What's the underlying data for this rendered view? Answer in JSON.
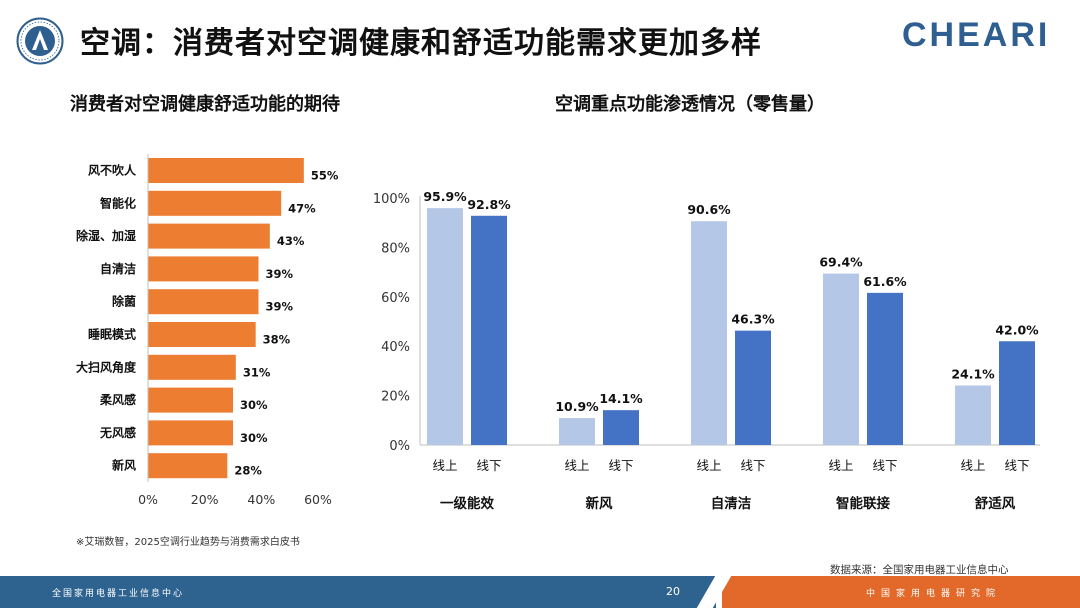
{
  "header": {
    "title": "空调：消费者对空调健康和舒适功能需求更加多样",
    "brand": "CHEARI"
  },
  "left_chart_title": "消费者对空调健康舒适功能的期待",
  "right_chart_title": "空调重点功能渗透情况（零售量）",
  "note": "※艾瑞数智，2025空调行业趋势与消费需求白皮书",
  "source": "数据来源：全国家用电器工业信息中心",
  "footer": {
    "left_text": "全国家用电器工业信息中心",
    "page_number": "20",
    "right_text": "中国家用电器研究院"
  },
  "colors": {
    "orange": "#ed7d31",
    "light_blue": "#b4c7e7",
    "dark_blue": "#4472c4",
    "brand_blue": "#2f5f91",
    "footer_blue": "#2e6390",
    "footer_orange": "#e2692a"
  },
  "chart_data": [
    {
      "type": "bar",
      "orientation": "horizontal",
      "title": "消费者对空调健康舒适功能的期待",
      "categories": [
        "风不吹人",
        "智能化",
        "除湿、加湿",
        "自清洁",
        "除菌",
        "睡眠模式",
        "大扫风角度",
        "柔风感",
        "无风感",
        "新风"
      ],
      "values": [
        55,
        47,
        43,
        39,
        39,
        38,
        31,
        30,
        30,
        28
      ],
      "value_labels": [
        "55%",
        "47%",
        "43%",
        "39%",
        "39%",
        "38%",
        "31%",
        "30%",
        "30%",
        "28%"
      ],
      "xlim": [
        0,
        60
      ],
      "x_ticks": [
        "0%",
        "20%",
        "40%",
        "60%"
      ],
      "grid": false
    },
    {
      "type": "bar",
      "title": "空调重点功能渗透情况（零售量）",
      "categories": [
        "一级能效",
        "新风",
        "自清洁",
        "智能联接",
        "舒适风"
      ],
      "sub_labels": [
        "线上",
        "线下"
      ],
      "series": [
        {
          "name": "线上",
          "values": [
            95.9,
            10.9,
            90.6,
            69.4,
            24.1
          ],
          "labels": [
            "95.9%",
            "10.9%",
            "90.6%",
            "69.4%",
            "24.1%"
          ]
        },
        {
          "name": "线下",
          "values": [
            92.8,
            14.1,
            46.3,
            61.6,
            42.0
          ],
          "labels": [
            "92.8%",
            "14.1%",
            "46.3%",
            "61.6%",
            "42.0%"
          ]
        }
      ],
      "ylim": [
        0,
        100
      ],
      "y_ticks": [
        "0%",
        "20%",
        "40%",
        "60%",
        "80%",
        "100%"
      ],
      "grid": false
    }
  ]
}
